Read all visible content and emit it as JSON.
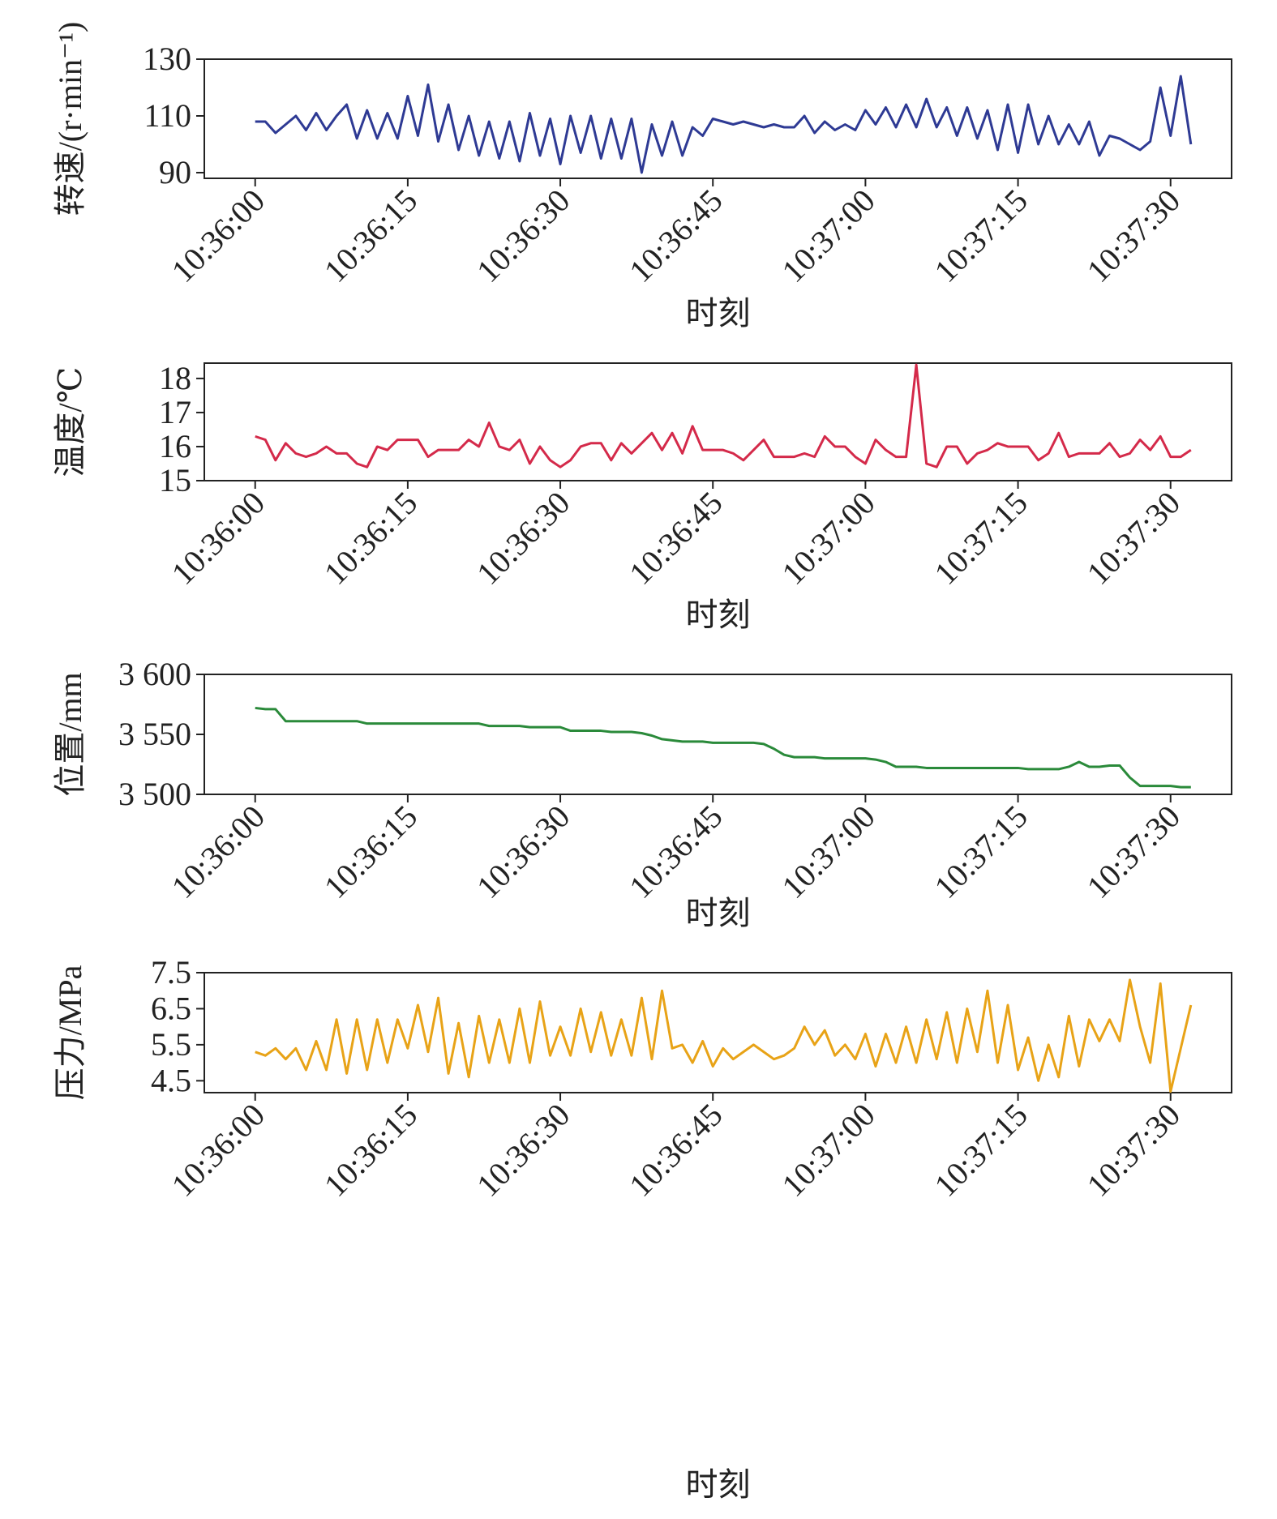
{
  "chart_data": [
    {
      "type": "line",
      "ylabel": "转速/(r·min⁻¹)",
      "xlabel": "时刻",
      "x": [
        "10:36:00",
        "10:36:01",
        "10:36:02",
        "10:36:03",
        "10:36:04",
        "10:36:05",
        "10:36:06",
        "10:36:07",
        "10:36:08",
        "10:36:09",
        "10:36:10",
        "10:36:11",
        "10:36:12",
        "10:36:13",
        "10:36:14",
        "10:36:15",
        "10:36:16",
        "10:36:17",
        "10:36:18",
        "10:36:19",
        "10:36:20",
        "10:36:21",
        "10:36:22",
        "10:36:23",
        "10:36:24",
        "10:36:25",
        "10:36:26",
        "10:36:27",
        "10:36:28",
        "10:36:29",
        "10:36:30",
        "10:36:31",
        "10:36:32",
        "10:36:33",
        "10:36:34",
        "10:36:35",
        "10:36:36",
        "10:36:37",
        "10:36:38",
        "10:36:39",
        "10:36:40",
        "10:36:41",
        "10:36:42",
        "10:36:43",
        "10:36:44",
        "10:36:45",
        "10:36:46",
        "10:36:47",
        "10:36:48",
        "10:36:49",
        "10:36:50",
        "10:36:51",
        "10:36:52",
        "10:36:53",
        "10:36:54",
        "10:36:55",
        "10:36:56",
        "10:36:57",
        "10:36:58",
        "10:36:59",
        "10:37:00",
        "10:37:01",
        "10:37:02",
        "10:37:03",
        "10:37:04",
        "10:37:05",
        "10:37:06",
        "10:37:07",
        "10:37:08",
        "10:37:09",
        "10:37:10",
        "10:37:11",
        "10:37:12",
        "10:37:13",
        "10:37:14",
        "10:37:15",
        "10:37:16",
        "10:37:17",
        "10:37:18",
        "10:37:19",
        "10:37:20",
        "10:37:21",
        "10:37:22",
        "10:37:23",
        "10:37:24",
        "10:37:25",
        "10:37:26",
        "10:37:27",
        "10:37:28",
        "10:37:29",
        "10:37:30",
        "10:37:31",
        "10:37:32"
      ],
      "series": [
        {
          "color": "#2e3a94",
          "values": [
            108,
            108,
            104,
            107,
            110,
            105,
            111,
            105,
            110,
            114,
            102,
            112,
            102,
            111,
            102,
            117,
            103,
            121,
            101,
            114,
            98,
            110,
            96,
            108,
            95,
            108,
            94,
            111,
            96,
            109,
            93,
            110,
            97,
            110,
            95,
            109,
            95,
            109,
            90,
            107,
            96,
            108,
            96,
            106,
            103,
            109,
            108,
            107,
            108,
            107,
            106,
            107,
            106,
            106,
            110,
            104,
            108,
            105,
            107,
            105,
            112,
            107,
            113,
            106,
            114,
            106,
            116,
            106,
            113,
            103,
            113,
            102,
            112,
            98,
            114,
            97,
            114,
            100,
            110,
            100,
            107,
            100,
            108,
            96,
            103,
            102,
            100,
            98,
            101,
            120,
            103,
            124,
            100
          ]
        }
      ],
      "xlim": [
        "10:35:55",
        "10:37:36"
      ],
      "xticks": [
        "10:36:00",
        "10:36:15",
        "10:36:30",
        "10:36:45",
        "10:37:00",
        "10:37:15",
        "10:37:30"
      ],
      "ylim": [
        88,
        130
      ],
      "yticks": [
        90,
        110,
        130
      ]
    },
    {
      "type": "line",
      "ylabel": "温度/℃",
      "xlabel": "时刻",
      "x": [
        "10:36:00",
        "10:36:01",
        "10:36:02",
        "10:36:03",
        "10:36:04",
        "10:36:05",
        "10:36:06",
        "10:36:07",
        "10:36:08",
        "10:36:09",
        "10:36:10",
        "10:36:11",
        "10:36:12",
        "10:36:13",
        "10:36:14",
        "10:36:15",
        "10:36:16",
        "10:36:17",
        "10:36:18",
        "10:36:19",
        "10:36:20",
        "10:36:21",
        "10:36:22",
        "10:36:23",
        "10:36:24",
        "10:36:25",
        "10:36:26",
        "10:36:27",
        "10:36:28",
        "10:36:29",
        "10:36:30",
        "10:36:31",
        "10:36:32",
        "10:36:33",
        "10:36:34",
        "10:36:35",
        "10:36:36",
        "10:36:37",
        "10:36:38",
        "10:36:39",
        "10:36:40",
        "10:36:41",
        "10:36:42",
        "10:36:43",
        "10:36:44",
        "10:36:45",
        "10:36:46",
        "10:36:47",
        "10:36:48",
        "10:36:49",
        "10:36:50",
        "10:36:51",
        "10:36:52",
        "10:36:53",
        "10:36:54",
        "10:36:55",
        "10:36:56",
        "10:36:57",
        "10:36:58",
        "10:36:59",
        "10:37:00",
        "10:37:01",
        "10:37:02",
        "10:37:03",
        "10:37:04",
        "10:37:05",
        "10:37:06",
        "10:37:07",
        "10:37:08",
        "10:37:09",
        "10:37:10",
        "10:37:11",
        "10:37:12",
        "10:37:13",
        "10:37:14",
        "10:37:15",
        "10:37:16",
        "10:37:17",
        "10:37:18",
        "10:37:19",
        "10:37:20",
        "10:37:21",
        "10:37:22",
        "10:37:23",
        "10:37:24",
        "10:37:25",
        "10:37:26",
        "10:37:27",
        "10:37:28",
        "10:37:29",
        "10:37:30",
        "10:37:31",
        "10:37:32"
      ],
      "series": [
        {
          "color": "#d42a4a",
          "values": [
            16.3,
            16.2,
            15.6,
            16.1,
            15.8,
            15.7,
            15.8,
            16.0,
            15.8,
            15.8,
            15.5,
            15.4,
            16.0,
            15.9,
            16.2,
            16.2,
            16.2,
            15.7,
            15.9,
            15.9,
            15.9,
            16.2,
            16.0,
            16.7,
            16.0,
            15.9,
            16.2,
            15.5,
            16.0,
            15.6,
            15.4,
            15.6,
            16.0,
            16.1,
            16.1,
            15.6,
            16.1,
            15.8,
            16.1,
            16.4,
            15.9,
            16.4,
            15.8,
            16.6,
            15.9,
            15.9,
            15.9,
            15.8,
            15.6,
            15.9,
            16.2,
            15.7,
            15.7,
            15.7,
            15.8,
            15.7,
            16.3,
            16.0,
            16.0,
            15.7,
            15.5,
            16.2,
            15.9,
            15.7,
            15.7,
            18.4,
            15.5,
            15.4,
            16.0,
            16.0,
            15.5,
            15.8,
            15.9,
            16.1,
            16.0,
            16.0,
            16.0,
            15.6,
            15.8,
            16.4,
            15.7,
            15.8,
            15.8,
            15.8,
            16.1,
            15.7,
            15.8,
            16.2,
            15.9,
            16.3,
            15.7,
            15.7,
            15.9
          ]
        }
      ],
      "xlim": [
        "10:35:55",
        "10:37:36"
      ],
      "xticks": [
        "10:36:00",
        "10:36:15",
        "10:36:30",
        "10:36:45",
        "10:37:00",
        "10:37:15",
        "10:37:30"
      ],
      "ylim": [
        15,
        18.45
      ],
      "yticks": [
        15,
        16,
        17,
        18
      ]
    },
    {
      "type": "line",
      "ylabel": "位置/mm",
      "xlabel": "时刻",
      "x": [
        "10:36:00",
        "10:36:01",
        "10:36:02",
        "10:36:03",
        "10:36:04",
        "10:36:05",
        "10:36:06",
        "10:36:07",
        "10:36:08",
        "10:36:09",
        "10:36:10",
        "10:36:11",
        "10:36:12",
        "10:36:13",
        "10:36:14",
        "10:36:15",
        "10:36:16",
        "10:36:17",
        "10:36:18",
        "10:36:19",
        "10:36:20",
        "10:36:21",
        "10:36:22",
        "10:36:23",
        "10:36:24",
        "10:36:25",
        "10:36:26",
        "10:36:27",
        "10:36:28",
        "10:36:29",
        "10:36:30",
        "10:36:31",
        "10:36:32",
        "10:36:33",
        "10:36:34",
        "10:36:35",
        "10:36:36",
        "10:36:37",
        "10:36:38",
        "10:36:39",
        "10:36:40",
        "10:36:41",
        "10:36:42",
        "10:36:43",
        "10:36:44",
        "10:36:45",
        "10:36:46",
        "10:36:47",
        "10:36:48",
        "10:36:49",
        "10:36:50",
        "10:36:51",
        "10:36:52",
        "10:36:53",
        "10:36:54",
        "10:36:55",
        "10:36:56",
        "10:36:57",
        "10:36:58",
        "10:36:59",
        "10:37:00",
        "10:37:01",
        "10:37:02",
        "10:37:03",
        "10:37:04",
        "10:37:05",
        "10:37:06",
        "10:37:07",
        "10:37:08",
        "10:37:09",
        "10:37:10",
        "10:37:11",
        "10:37:12",
        "10:37:13",
        "10:37:14",
        "10:37:15",
        "10:37:16",
        "10:37:17",
        "10:37:18",
        "10:37:19",
        "10:37:20",
        "10:37:21",
        "10:37:22",
        "10:37:23",
        "10:37:24",
        "10:37:25",
        "10:37:26",
        "10:37:27",
        "10:37:28",
        "10:37:29",
        "10:37:30",
        "10:37:31",
        "10:37:32"
      ],
      "series": [
        {
          "color": "#2a8a3a",
          "values": [
            3572,
            3571,
            3571,
            3561,
            3561,
            3561,
            3561,
            3561,
            3561,
            3561,
            3561,
            3559,
            3559,
            3559,
            3559,
            3559,
            3559,
            3559,
            3559,
            3559,
            3559,
            3559,
            3559,
            3557,
            3557,
            3557,
            3557,
            3556,
            3556,
            3556,
            3556,
            3553,
            3553,
            3553,
            3553,
            3552,
            3552,
            3552,
            3551,
            3549,
            3546,
            3545,
            3544,
            3544,
            3544,
            3543,
            3543,
            3543,
            3543,
            3543,
            3542,
            3538,
            3533,
            3531,
            3531,
            3531,
            3530,
            3530,
            3530,
            3530,
            3530,
            3529,
            3527,
            3523,
            3523,
            3523,
            3522,
            3522,
            3522,
            3522,
            3522,
            3522,
            3522,
            3522,
            3522,
            3522,
            3521,
            3521,
            3521,
            3521,
            3523,
            3527,
            3523,
            3523,
            3524,
            3524,
            3514,
            3507,
            3507,
            3507,
            3507,
            3506,
            3506
          ]
        }
      ],
      "xlim": [
        "10:35:55",
        "10:37:36"
      ],
      "xticks": [
        "10:36:00",
        "10:36:15",
        "10:36:30",
        "10:36:45",
        "10:37:00",
        "10:37:15",
        "10:37:30"
      ],
      "ylim": [
        3500,
        3600
      ],
      "yticks": [
        {
          "value": 3500,
          "label": "3 500"
        },
        {
          "value": 3550,
          "label": "3 550"
        },
        {
          "value": 3600,
          "label": "3 600"
        }
      ]
    },
    {
      "type": "line",
      "ylabel": "压力/MPa",
      "xlabel": "时刻",
      "x": [
        "10:36:00",
        "10:36:01",
        "10:36:02",
        "10:36:03",
        "10:36:04",
        "10:36:05",
        "10:36:06",
        "10:36:07",
        "10:36:08",
        "10:36:09",
        "10:36:10",
        "10:36:11",
        "10:36:12",
        "10:36:13",
        "10:36:14",
        "10:36:15",
        "10:36:16",
        "10:36:17",
        "10:36:18",
        "10:36:19",
        "10:36:20",
        "10:36:21",
        "10:36:22",
        "10:36:23",
        "10:36:24",
        "10:36:25",
        "10:36:26",
        "10:36:27",
        "10:36:28",
        "10:36:29",
        "10:36:30",
        "10:36:31",
        "10:36:32",
        "10:36:33",
        "10:36:34",
        "10:36:35",
        "10:36:36",
        "10:36:37",
        "10:36:38",
        "10:36:39",
        "10:36:40",
        "10:36:41",
        "10:36:42",
        "10:36:43",
        "10:36:44",
        "10:36:45",
        "10:36:46",
        "10:36:47",
        "10:36:48",
        "10:36:49",
        "10:36:50",
        "10:36:51",
        "10:36:52",
        "10:36:53",
        "10:36:54",
        "10:36:55",
        "10:36:56",
        "10:36:57",
        "10:36:58",
        "10:36:59",
        "10:37:00",
        "10:37:01",
        "10:37:02",
        "10:37:03",
        "10:37:04",
        "10:37:05",
        "10:37:06",
        "10:37:07",
        "10:37:08",
        "10:37:09",
        "10:37:10",
        "10:37:11",
        "10:37:12",
        "10:37:13",
        "10:37:14",
        "10:37:15",
        "10:37:16",
        "10:37:17",
        "10:37:18",
        "10:37:19",
        "10:37:20",
        "10:37:21",
        "10:37:22",
        "10:37:23",
        "10:37:24",
        "10:37:25",
        "10:37:26",
        "10:37:27",
        "10:37:28",
        "10:37:29",
        "10:37:30",
        "10:37:31",
        "10:37:32"
      ],
      "series": [
        {
          "color": "#e8a317",
          "values": [
            5.3,
            5.2,
            5.4,
            5.1,
            5.4,
            4.8,
            5.6,
            4.8,
            6.2,
            4.7,
            6.2,
            4.8,
            6.2,
            5.0,
            6.2,
            5.4,
            6.6,
            5.3,
            6.8,
            4.7,
            6.1,
            4.6,
            6.3,
            5.0,
            6.2,
            5.0,
            6.5,
            5.0,
            6.7,
            5.2,
            6.0,
            5.2,
            6.5,
            5.3,
            6.4,
            5.2,
            6.2,
            5.2,
            6.8,
            5.1,
            7.0,
            5.4,
            5.5,
            5.0,
            5.6,
            4.9,
            5.4,
            5.1,
            5.3,
            5.5,
            5.3,
            5.1,
            5.2,
            5.4,
            6.0,
            5.5,
            5.9,
            5.2,
            5.5,
            5.1,
            5.8,
            4.9,
            5.8,
            5.0,
            6.0,
            5.0,
            6.2,
            5.1,
            6.4,
            5.0,
            6.5,
            5.3,
            7.0,
            5.0,
            6.6,
            4.8,
            5.7,
            4.5,
            5.5,
            4.6,
            6.3,
            4.9,
            6.2,
            5.6,
            6.2,
            5.6,
            7.3,
            6.0,
            5.0,
            7.2,
            4.2,
            5.4,
            6.6
          ]
        }
      ],
      "xlim": [
        "10:35:55",
        "10:37:36"
      ],
      "xticks": [
        "10:36:00",
        "10:36:15",
        "10:36:30",
        "10:36:45",
        "10:37:00",
        "10:37:15",
        "10:37:30"
      ],
      "ylim": [
        4.17,
        7.5
      ],
      "yticks": [
        4.5,
        5.5,
        6.5,
        7.5
      ]
    }
  ]
}
